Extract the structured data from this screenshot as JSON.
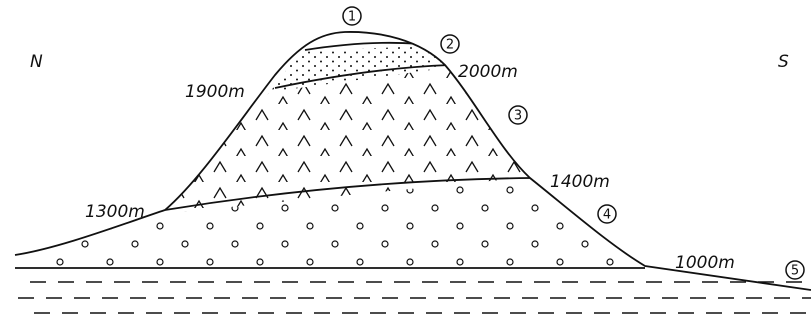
{
  "directions": {
    "north": "N",
    "south": "S"
  },
  "markers": [
    "1",
    "2",
    "3",
    "4",
    "5"
  ],
  "elevations": {
    "left_upper": "1900m",
    "right_upper": "2000m",
    "left_lower": "1300m",
    "right_lower": "1400m",
    "foot": "1000m"
  }
}
